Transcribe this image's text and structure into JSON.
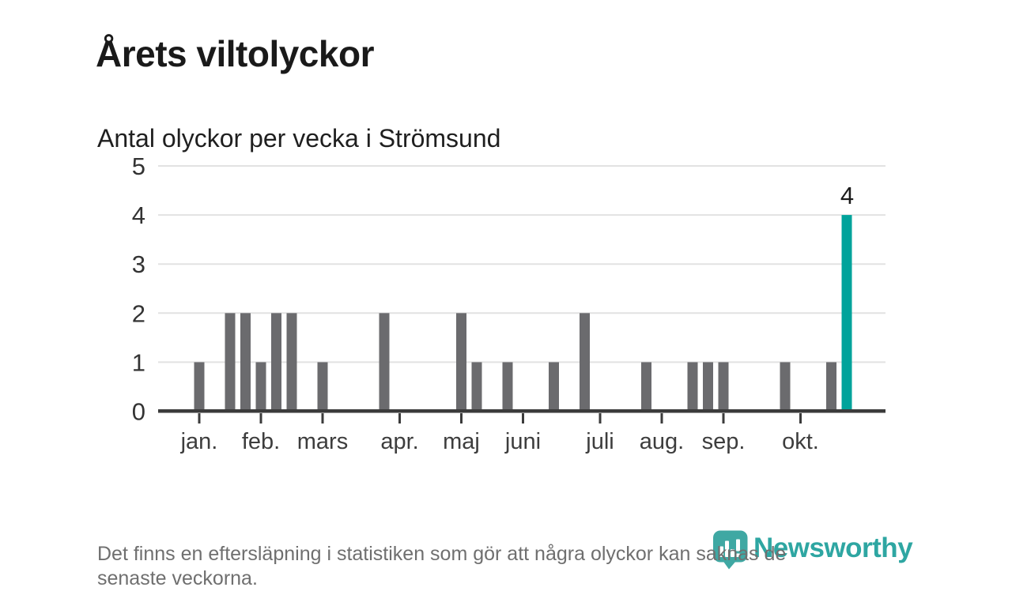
{
  "header": {
    "title": "Årets viltolyckor",
    "subtitle": "Antal olyckor per vecka i Strömsund"
  },
  "footnote": {
    "full_text": "Det finns en eftersläpning i statistiken som gör att några olyckor kan saknas de senaste veckorna.",
    "lines": [
      "Det finns en eftersläpning i statistiken som gör att några olyckor kan saknas de",
      "senaste veckorna."
    ]
  },
  "branding": {
    "name": "Newsworthy",
    "icon": "newsworthy-pin-icon"
  },
  "colors": {
    "bar_default": "#6b6b6e",
    "bar_highlight": "#00a39b",
    "axis": "#3b3b3b",
    "gridline": "#e2e2e2",
    "y_tick_label": "#333333",
    "x_tick_label": "#3d3d3d",
    "annotation": "#1b1b1b",
    "title_text": "#1a1a1a",
    "footnote_text": "#6f6f6f",
    "brand_teal": "#2ea6a2",
    "brand_pin": "#3fa8a3"
  },
  "chart_data": {
    "type": "bar",
    "title": "Årets viltolyckor",
    "subtitle": "Antal olyckor per vecka i Strömsund",
    "x_unit": "week",
    "x": [
      1,
      2,
      3,
      4,
      5,
      6,
      7,
      8,
      9,
      10,
      11,
      12,
      13,
      14,
      15,
      16,
      17,
      18,
      19,
      20,
      21,
      22,
      23,
      24,
      25,
      26,
      27,
      28,
      29,
      30,
      31,
      32,
      33,
      34,
      35,
      36,
      37,
      38,
      39,
      40,
      41,
      42,
      43
    ],
    "values": [
      1,
      0,
      2,
      2,
      1,
      2,
      2,
      0,
      1,
      0,
      0,
      0,
      2,
      0,
      0,
      0,
      0,
      2,
      1,
      0,
      1,
      0,
      0,
      1,
      0,
      2,
      0,
      0,
      0,
      1,
      0,
      0,
      1,
      1,
      1,
      0,
      0,
      0,
      1,
      0,
      0,
      1,
      4
    ],
    "highlight_week": 43,
    "annotations": [
      {
        "week": 43,
        "label": "4"
      }
    ],
    "months": [
      {
        "label": "jan.",
        "week": 1
      },
      {
        "label": "feb.",
        "week": 5
      },
      {
        "label": "mars",
        "week": 9
      },
      {
        "label": "apr.",
        "week": 14
      },
      {
        "label": "maj",
        "week": 18
      },
      {
        "label": "juni",
        "week": 22
      },
      {
        "label": "juli",
        "week": 27
      },
      {
        "label": "aug.",
        "week": 31
      },
      {
        "label": "sep.",
        "week": 35
      },
      {
        "label": "okt.",
        "week": 40
      }
    ],
    "yticks": [
      0,
      1,
      2,
      3,
      4,
      5
    ],
    "ylim": [
      0,
      5
    ],
    "grid": true,
    "legend": null
  }
}
